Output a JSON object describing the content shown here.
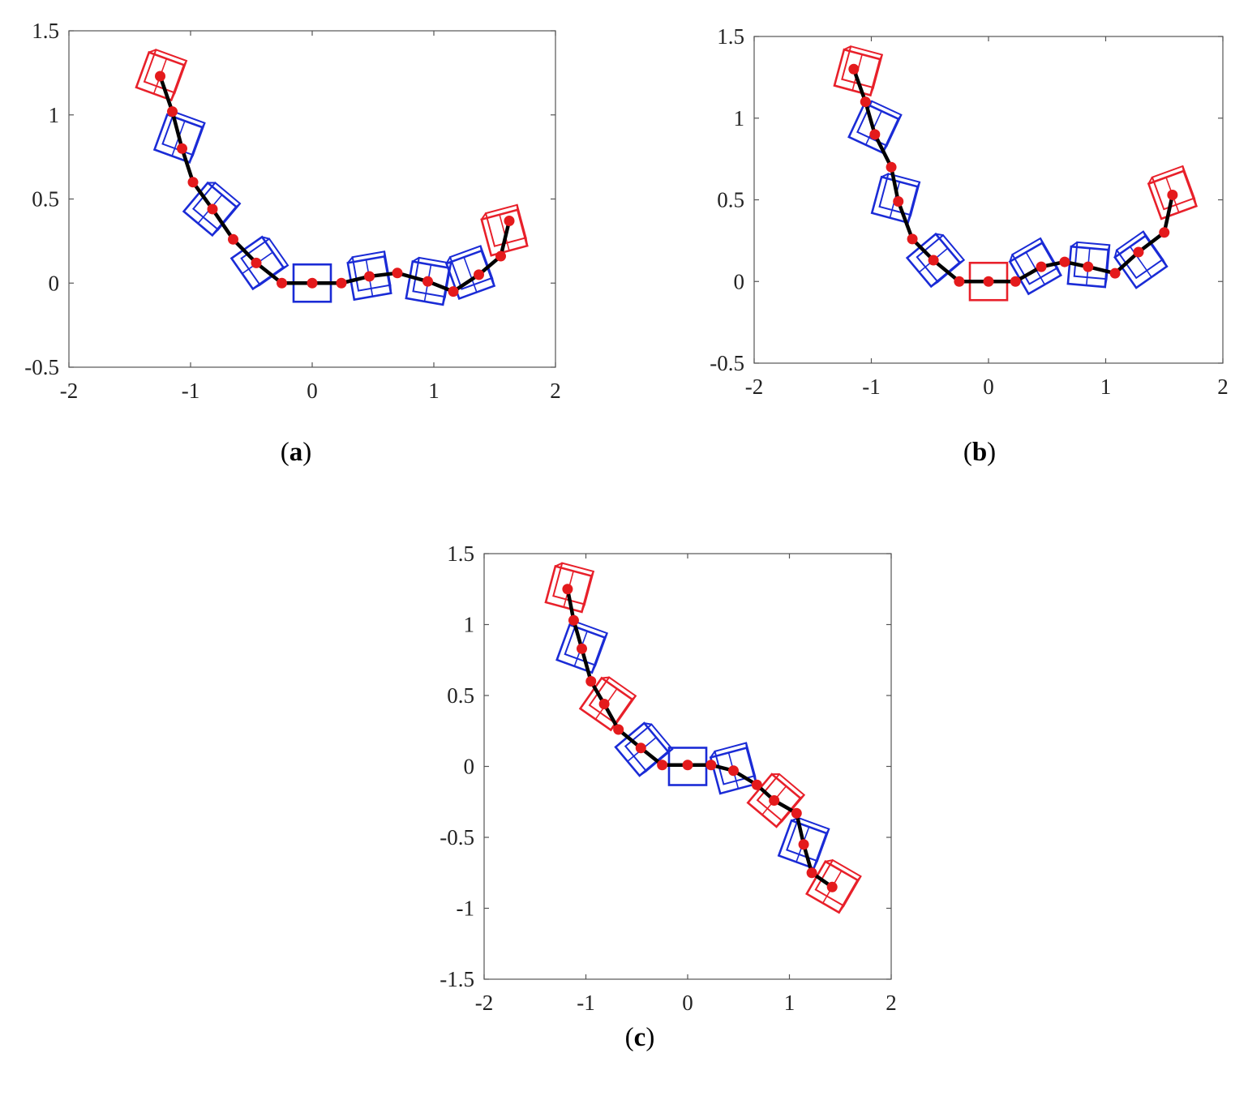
{
  "colors": {
    "link": "#000000",
    "joint": "#e41a1c",
    "module_blue": "#1a2bd6",
    "module_red": "#e8202a",
    "axes": "#555555"
  },
  "chart_data": [
    {
      "id": "a",
      "type": "scatter",
      "label": "a",
      "label_open": "(",
      "label_close": ")",
      "xlim": [
        -2,
        2
      ],
      "ylim": [
        -0.5,
        1.5
      ],
      "xticks": [
        -2,
        -1,
        0,
        1,
        2
      ],
      "yticks": [
        -0.5,
        0,
        0.5,
        1,
        1.5
      ],
      "xtick_labels": [
        "-2",
        "-1",
        "0",
        "1",
        "2"
      ],
      "ytick_labels": [
        "-0.5",
        "0",
        "0.5",
        "1",
        "1.5"
      ],
      "joints": {
        "x": [
          -1.25,
          -1.15,
          -1.07,
          -0.98,
          -0.82,
          -0.65,
          -0.46,
          -0.25,
          0.0,
          0.24,
          0.47,
          0.7,
          0.95,
          1.16,
          1.37,
          1.55,
          1.62
        ],
        "y": [
          1.23,
          1.02,
          0.8,
          0.6,
          0.44,
          0.26,
          0.12,
          0.0,
          0.0,
          0.0,
          0.04,
          0.06,
          0.01,
          -0.05,
          0.05,
          0.16,
          0.37
        ]
      },
      "modules": [
        {
          "color": "red",
          "x": -1.25,
          "y": 1.23,
          "angle": -20
        },
        {
          "color": "blue",
          "x": -1.1,
          "y": 0.86,
          "angle": -20
        },
        {
          "color": "blue",
          "x": -0.84,
          "y": 0.44,
          "angle": -40
        },
        {
          "color": "blue",
          "x": -0.45,
          "y": 0.12,
          "angle": -55
        },
        {
          "color": "blue",
          "x": 0.0,
          "y": 0.0,
          "angle": 0
        },
        {
          "color": "blue",
          "x": 0.47,
          "y": 0.03,
          "angle": 10
        },
        {
          "color": "blue",
          "x": 0.95,
          "y": 0.0,
          "angle": -10
        },
        {
          "color": "blue",
          "x": 1.3,
          "y": 0.05,
          "angle": 20
        },
        {
          "color": "red",
          "x": 1.58,
          "y": 0.3,
          "angle": 15
        }
      ]
    },
    {
      "id": "b",
      "type": "scatter",
      "label": "b",
      "label_open": "(",
      "label_close": ")",
      "xlim": [
        -2,
        2
      ],
      "ylim": [
        -0.5,
        1.5
      ],
      "xticks": [
        -2,
        -1,
        0,
        1,
        2
      ],
      "yticks": [
        -0.5,
        0,
        0.5,
        1,
        1.5
      ],
      "xtick_labels": [
        "-2",
        "-1",
        "0",
        "1",
        "2"
      ],
      "ytick_labels": [
        "-0.5",
        "0",
        "0.5",
        "1",
        "1.5"
      ],
      "joints": {
        "x": [
          -1.15,
          -1.05,
          -0.97,
          -0.83,
          -0.77,
          -0.65,
          -0.47,
          -0.25,
          0.0,
          0.23,
          0.45,
          0.65,
          0.85,
          1.08,
          1.28,
          1.5,
          1.57
        ],
        "y": [
          1.3,
          1.1,
          0.9,
          0.7,
          0.49,
          0.26,
          0.13,
          0.0,
          0.0,
          0.0,
          0.09,
          0.12,
          0.09,
          0.05,
          0.18,
          0.3,
          0.53
        ]
      },
      "modules": [
        {
          "color": "red",
          "x": -1.12,
          "y": 1.28,
          "angle": -15
        },
        {
          "color": "blue",
          "x": -0.98,
          "y": 0.94,
          "angle": -25
        },
        {
          "color": "blue",
          "x": -0.8,
          "y": 0.5,
          "angle": -15
        },
        {
          "color": "blue",
          "x": -0.47,
          "y": 0.13,
          "angle": -50
        },
        {
          "color": "red",
          "x": 0.0,
          "y": 0.0,
          "angle": 0
        },
        {
          "color": "blue",
          "x": 0.4,
          "y": 0.08,
          "angle": 30
        },
        {
          "color": "blue",
          "x": 0.85,
          "y": 0.09,
          "angle": -5
        },
        {
          "color": "blue",
          "x": 1.3,
          "y": 0.12,
          "angle": 35
        },
        {
          "color": "red",
          "x": 1.57,
          "y": 0.53,
          "angle": 20
        }
      ]
    },
    {
      "id": "c",
      "type": "scatter",
      "label": "c",
      "label_open": "(",
      "label_close": ")",
      "xlim": [
        -2,
        2
      ],
      "ylim": [
        -1.5,
        1.5
      ],
      "xticks": [
        -2,
        -1,
        0,
        1,
        2
      ],
      "yticks": [
        -1.5,
        -1,
        -0.5,
        0,
        0.5,
        1,
        1.5
      ],
      "xtick_labels": [
        "-2",
        "-1",
        "0",
        "1",
        "2"
      ],
      "ytick_labels": [
        "-1.5",
        "-1",
        "-0.5",
        "0",
        "0.5",
        "1",
        "1.5"
      ],
      "joints": {
        "x": [
          -1.18,
          -1.12,
          -1.04,
          -0.95,
          -0.82,
          -0.68,
          -0.46,
          -0.25,
          0.0,
          0.23,
          0.45,
          0.68,
          0.85,
          1.07,
          1.14,
          1.22,
          1.42
        ],
        "y": [
          1.25,
          1.03,
          0.83,
          0.6,
          0.44,
          0.26,
          0.13,
          0.01,
          0.01,
          0.01,
          -0.03,
          -0.13,
          -0.24,
          -0.33,
          -0.55,
          -0.75,
          -0.85
        ]
      },
      "modules": [
        {
          "color": "red",
          "x": -1.17,
          "y": 1.25,
          "angle": -15
        },
        {
          "color": "blue",
          "x": -1.05,
          "y": 0.83,
          "angle": -20
        },
        {
          "color": "red",
          "x": -0.8,
          "y": 0.44,
          "angle": -35
        },
        {
          "color": "blue",
          "x": -0.45,
          "y": 0.12,
          "angle": -50
        },
        {
          "color": "blue",
          "x": 0.0,
          "y": 0.0,
          "angle": 0
        },
        {
          "color": "blue",
          "x": 0.45,
          "y": -0.03,
          "angle": 15
        },
        {
          "color": "red",
          "x": 0.85,
          "y": -0.24,
          "angle": -40
        },
        {
          "color": "blue",
          "x": 1.13,
          "y": -0.55,
          "angle": -20
        },
        {
          "color": "red",
          "x": 1.42,
          "y": -0.85,
          "angle": -30
        }
      ]
    }
  ]
}
